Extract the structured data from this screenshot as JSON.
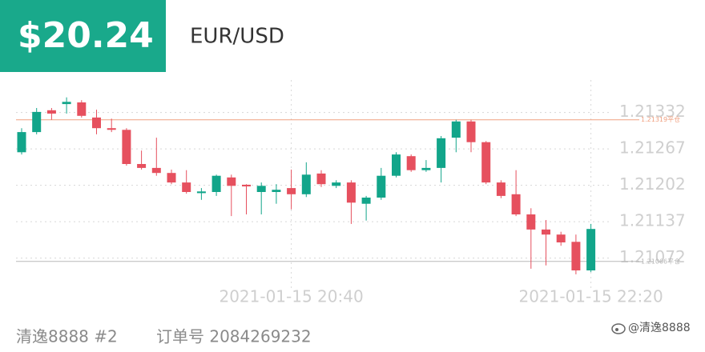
{
  "header": {
    "price": "$20.24",
    "symbol": "EUR/USD"
  },
  "chart_data": {
    "type": "candlestick",
    "categories": [
      null,
      null,
      null,
      null,
      null,
      null,
      null,
      null,
      null,
      null,
      null,
      null,
      null,
      null,
      null,
      null,
      null,
      null,
      "2021-01-15 20:40",
      null,
      null,
      null,
      null,
      null,
      null,
      null,
      null,
      null,
      null,
      null,
      null,
      null,
      null,
      null,
      null,
      null,
      null,
      null,
      "2021-01-15 22:20"
    ],
    "open": [
      1.21261,
      1.21297,
      1.21336,
      1.21347,
      1.2135,
      1.21323,
      1.21304,
      1.21301,
      1.2124,
      1.21233,
      1.21224,
      1.21207,
      1.21188,
      1.2119,
      1.21216,
      1.21203,
      1.2119,
      1.2119,
      1.21197,
      1.21186,
      1.21223,
      1.21201,
      1.21207,
      1.21169,
      1.2118,
      1.21219,
      1.21254,
      1.21229,
      1.21233,
      1.21287,
      1.21316,
      1.21279,
      1.21207,
      1.21186,
      1.2115,
      1.21123,
      1.21114,
      1.21101,
      1.2105
    ],
    "high": [
      1.21304,
      1.2134,
      1.2134,
      1.21359,
      1.21354,
      1.21337,
      1.21321,
      1.21304,
      1.21264,
      1.21287,
      1.2123,
      1.21229,
      1.21197,
      1.21221,
      1.21221,
      1.21204,
      1.21207,
      1.21204,
      1.2123,
      1.21243,
      1.21229,
      1.21211,
      1.21211,
      1.21183,
      1.21233,
      1.21261,
      1.21257,
      1.21247,
      1.2129,
      1.21319,
      1.21319,
      1.21281,
      1.21211,
      1.21229,
      1.21161,
      1.2114,
      1.21119,
      1.21114,
      1.21133
    ],
    "low": [
      1.21257,
      1.21293,
      1.21319,
      1.2133,
      1.21323,
      1.21293,
      1.21297,
      1.21237,
      1.2123,
      1.21219,
      1.21204,
      1.21187,
      1.21176,
      1.21183,
      1.21147,
      1.2115,
      1.2115,
      1.21169,
      1.21159,
      1.21181,
      1.21199,
      1.21197,
      1.21133,
      1.21139,
      1.21176,
      1.21216,
      1.21226,
      1.21226,
      1.21207,
      1.21261,
      1.21261,
      1.21204,
      1.21179,
      1.21147,
      1.21053,
      1.21059,
      1.21094,
      1.21043,
      1.21047
    ],
    "close": [
      1.21297,
      1.21333,
      1.2133,
      1.21351,
      1.21326,
      1.21304,
      1.21301,
      1.2124,
      1.21233,
      1.21224,
      1.21207,
      1.2119,
      1.21191,
      1.21219,
      1.21201,
      1.212,
      1.21201,
      1.21194,
      1.21186,
      1.21221,
      1.21204,
      1.21207,
      1.21171,
      1.2118,
      1.21219,
      1.21257,
      1.21229,
      1.21233,
      1.21286,
      1.21316,
      1.21279,
      1.21207,
      1.21183,
      1.2115,
      1.21123,
      1.21114,
      1.211,
      1.2105,
      1.21124
    ],
    "up_color": "#12a58a",
    "down_color": "#e6505e",
    "ylim": [
      1.2104,
      1.2139
    ],
    "yticks": [
      1.21332,
      1.21267,
      1.21202,
      1.21137,
      1.21072
    ],
    "grid": true,
    "reference_lines": [
      {
        "value": 1.21319,
        "label": "1.21319平仓",
        "color": "#f0a080"
      },
      {
        "value": 1.21066,
        "label": "1.21066平仓",
        "color": "#b8b8b8"
      }
    ]
  },
  "footer": {
    "user": "清逸8888 #2",
    "order": "订单号 2084269232"
  },
  "watermark": "@清逸8888"
}
